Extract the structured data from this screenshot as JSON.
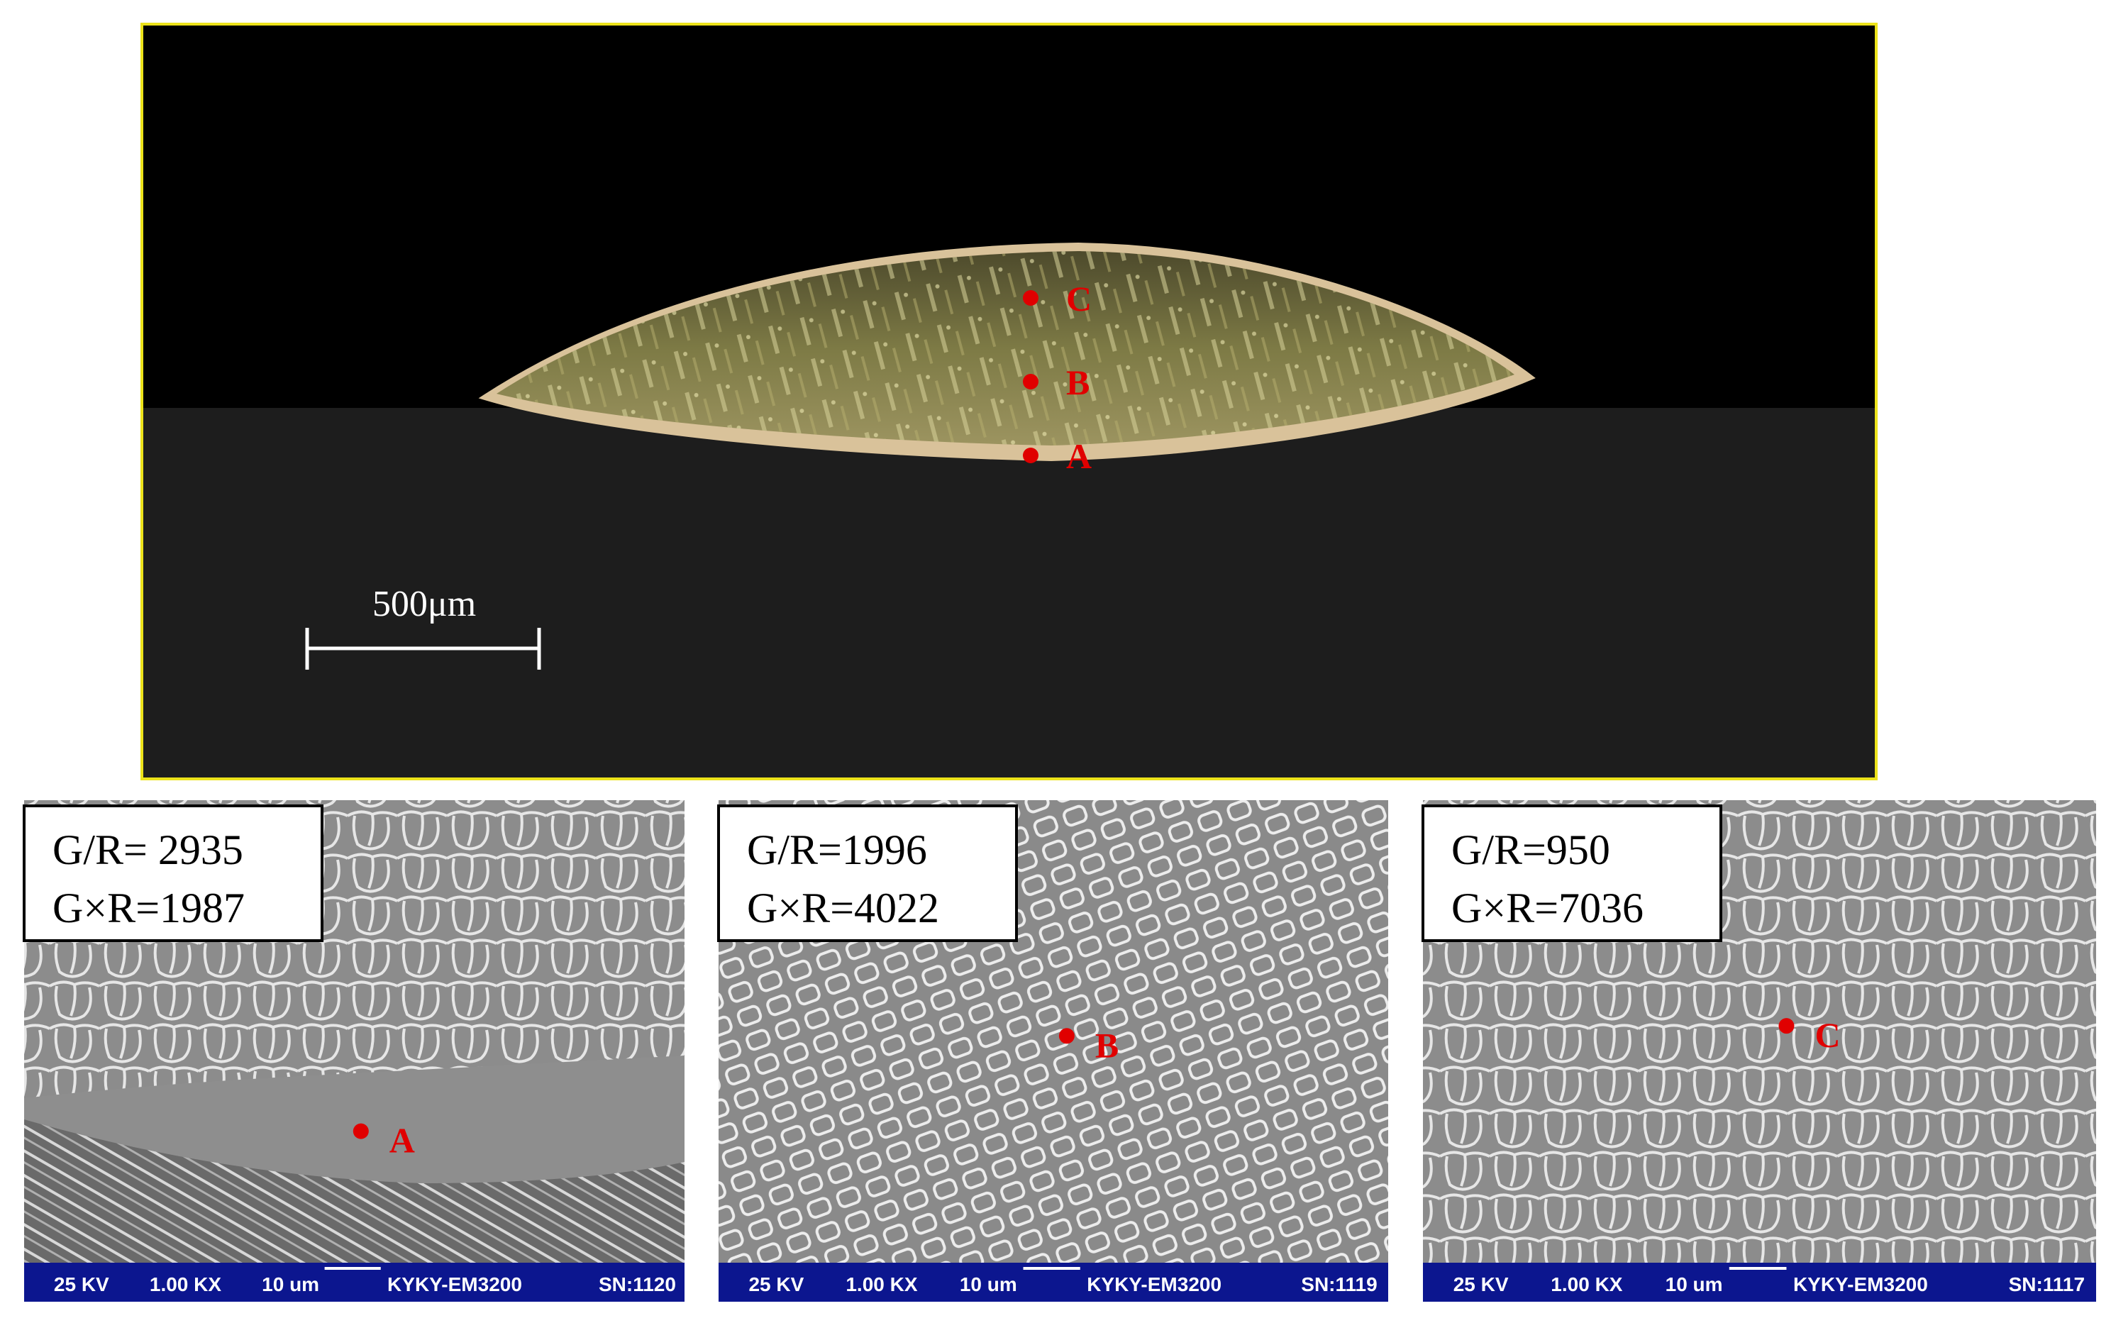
{
  "top_image": {
    "scale_bar": "500μm",
    "markers": [
      "C",
      "B",
      "A"
    ]
  },
  "panels": [
    {
      "gr": "G/R= 2935",
      "gxr": "G×R=1987",
      "marker": "A",
      "info_bar": [
        "25 KV",
        "1.00 KX",
        "10 um",
        "KYKY-EM3200",
        "SN:1120"
      ]
    },
    {
      "gr": "G/R=1996",
      "gxr": "G×R=4022",
      "marker": "B",
      "info_bar": [
        "25 KV",
        "1.00 KX",
        "10 um",
        "KYKY-EM3200",
        "SN:1119"
      ]
    },
    {
      "gr": "G/R=950",
      "gxr": "G×R=7036",
      "marker": "C",
      "info_bar": [
        "25 KV",
        "1.00 KX",
        "10 um",
        "KYKY-EM3200",
        "SN:1117"
      ]
    }
  ]
}
